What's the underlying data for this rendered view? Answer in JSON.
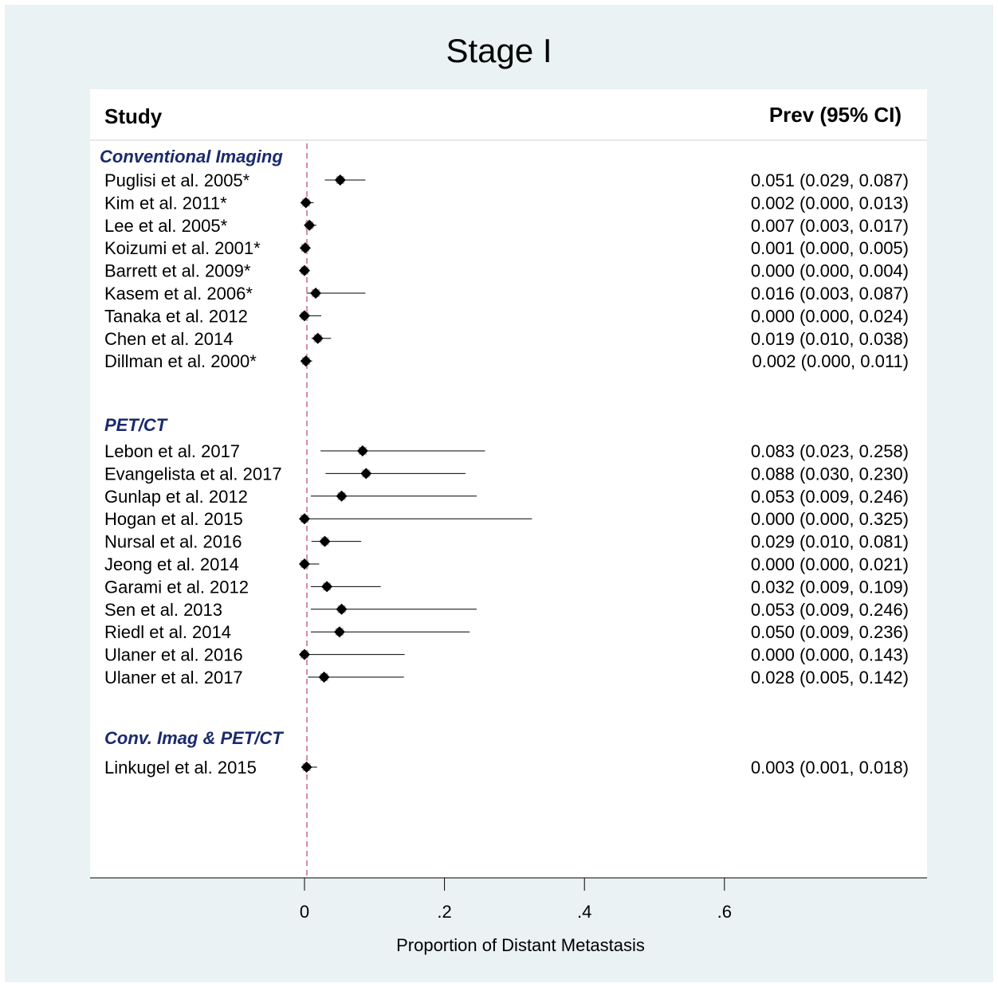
{
  "chart_data": {
    "type": "forest",
    "title": "Stage I",
    "xlabel": "Proportion of Distant Metastasis",
    "header_left": "Study",
    "header_right": "Prev (95% CI)",
    "xlim": [
      0,
      0.6
    ],
    "xticks": [
      "0",
      ".2",
      ".4",
      ".6"
    ],
    "reference_line": 0,
    "colors": {
      "group_label": "#1a2a6c",
      "reference_line": "#c96a7e",
      "outer_bg": "#eaf2f3"
    },
    "groups": [
      {
        "name": "Conventional Imaging",
        "studies": [
          {
            "study": "Puglisi et al. 2005*",
            "est": 0.051,
            "lo": 0.029,
            "hi": 0.087,
            "ci_text": "0.051 (0.029, 0.087)"
          },
          {
            "study": "Kim et al. 2011*",
            "est": 0.002,
            "lo": 0.0,
            "hi": 0.013,
            "ci_text": "0.002 (0.000, 0.013)"
          },
          {
            "study": "Lee et al. 2005*",
            "est": 0.007,
            "lo": 0.003,
            "hi": 0.017,
            "ci_text": "0.007 (0.003, 0.017)"
          },
          {
            "study": "Koizumi et al. 2001*",
            "est": 0.001,
            "lo": 0.0,
            "hi": 0.005,
            "ci_text": "0.001 (0.000, 0.005)"
          },
          {
            "study": "Barrett et al. 2009*",
            "est": 0.0,
            "lo": 0.0,
            "hi": 0.004,
            "ci_text": "0.000 (0.000, 0.004)"
          },
          {
            "study": "Kasem et al. 2006*",
            "est": 0.016,
            "lo": 0.003,
            "hi": 0.087,
            "ci_text": "0.016 (0.003, 0.087)"
          },
          {
            "study": "Tanaka et al. 2012",
            "est": 0.0,
            "lo": 0.0,
            "hi": 0.024,
            "ci_text": "0.000 (0.000, 0.024)"
          },
          {
            "study": "Chen et al. 2014",
            "est": 0.019,
            "lo": 0.01,
            "hi": 0.038,
            "ci_text": "0.019 (0.010, 0.038)"
          },
          {
            "study": "Dillman et al. 2000*",
            "est": 0.002,
            "lo": 0.0,
            "hi": 0.011,
            "ci_text": "0.002 (0.000, 0.011)"
          }
        ]
      },
      {
        "name": "PET/CT",
        "studies": [
          {
            "study": "Lebon et al. 2017",
            "est": 0.083,
            "lo": 0.023,
            "hi": 0.258,
            "ci_text": "0.083 (0.023, 0.258)"
          },
          {
            "study": "Evangelista et al. 2017",
            "est": 0.088,
            "lo": 0.03,
            "hi": 0.23,
            "ci_text": "0.088 (0.030, 0.230)"
          },
          {
            "study": "Gunlap et al. 2012",
            "est": 0.053,
            "lo": 0.009,
            "hi": 0.246,
            "ci_text": "0.053 (0.009, 0.246)"
          },
          {
            "study": "Hogan et al. 2015",
            "est": 0.0,
            "lo": 0.0,
            "hi": 0.325,
            "ci_text": "0.000 (0.000, 0.325)"
          },
          {
            "study": "Nursal et al. 2016",
            "est": 0.029,
            "lo": 0.01,
            "hi": 0.081,
            "ci_text": "0.029 (0.010, 0.081)"
          },
          {
            "study": "Jeong et al. 2014",
            "est": 0.0,
            "lo": 0.0,
            "hi": 0.021,
            "ci_text": "0.000 (0.000, 0.021)"
          },
          {
            "study": "Garami et al. 2012",
            "est": 0.032,
            "lo": 0.009,
            "hi": 0.109,
            "ci_text": "0.032 (0.009, 0.109)"
          },
          {
            "study": "Sen et al. 2013",
            "est": 0.053,
            "lo": 0.009,
            "hi": 0.246,
            "ci_text": "0.053 (0.009, 0.246)"
          },
          {
            "study": "Riedl et al. 2014",
            "est": 0.05,
            "lo": 0.009,
            "hi": 0.236,
            "ci_text": "0.050 (0.009, 0.236)"
          },
          {
            "study": "Ulaner et al. 2016",
            "est": 0.0,
            "lo": 0.0,
            "hi": 0.143,
            "ci_text": "0.000 (0.000, 0.143)"
          },
          {
            "study": "Ulaner et al. 2017",
            "est": 0.028,
            "lo": 0.005,
            "hi": 0.142,
            "ci_text": "0.028 (0.005, 0.142)"
          }
        ]
      },
      {
        "name": "Conv. Imag & PET/CT",
        "studies": [
          {
            "study": "Linkugel et al. 2015",
            "est": 0.003,
            "lo": 0.001,
            "hi": 0.018,
            "ci_text": "0.003 (0.001, 0.018)"
          }
        ]
      }
    ]
  }
}
